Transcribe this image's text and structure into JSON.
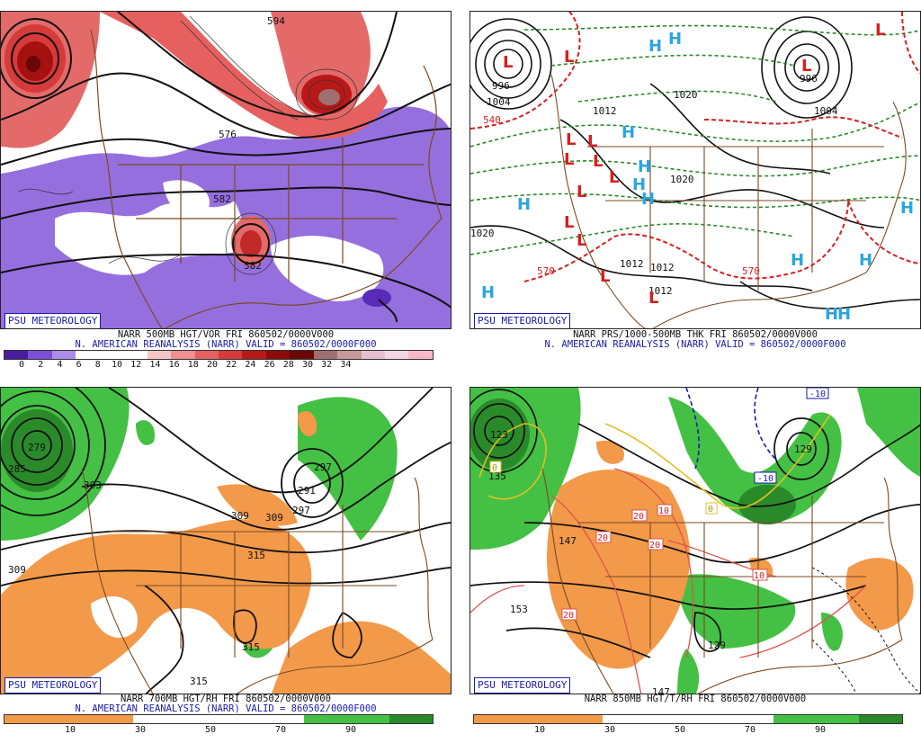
{
  "panels": [
    {
      "id": "vor500",
      "badge": "PSU METEOROLOGY",
      "title": "NARR 500MB HGT/VOR FRI 860502/0000V000",
      "subtitle": "N. AMERICAN REANALYSIS (NARR) VALID = 860502/0000F000",
      "colorbar": {
        "colors": [
          "#4b1d9e",
          "#7d4fd8",
          "#ab8ce8",
          "#ffffff",
          "#ffffff",
          "#ffffff",
          "#f6c6c6",
          "#f09090",
          "#e66060",
          "#d63a3a",
          "#b81818",
          "#8c0a0a",
          "#6a0606",
          "#a07070",
          "#c89898",
          "#e6bfd0",
          "#f2d6e2",
          "#f7b8c8"
        ],
        "labels": [
          "0",
          "2",
          "4",
          "6",
          "8",
          "10",
          "12",
          "14",
          "16",
          "18",
          "20",
          "22",
          "24",
          "26",
          "28",
          "30",
          "32",
          "34"
        ]
      },
      "contour_labels": [
        "594",
        "576",
        "582",
        "582"
      ]
    },
    {
      "id": "prs1000",
      "badge": "PSU METEOROLOGY",
      "title": "NARR PRS/1000-500MB THK FRI 860502/0000V000",
      "subtitle": "N. AMERICAN REANALYSIS (NARR) VALID = 860502/0000F000",
      "contour_labels": [
        "996",
        "1004",
        "540",
        "1012",
        "1020",
        "1020",
        "1012",
        "1012",
        "570",
        "570",
        "996",
        "1004",
        "1020",
        "1012"
      ],
      "highs": "H",
      "lows": "L"
    },
    {
      "id": "rh700",
      "badge": "PSU METEOROLOGY",
      "title": "NARR 700MB HGT/RH FRI 860502/0000V000",
      "subtitle": "N. AMERICAN REANALYSIS (NARR) VALID = 860502/0000F000",
      "colorbar": {
        "colors": [
          "#f29a4a",
          "#f29a4a",
          "#f29a4a",
          "#ffffff",
          "#ffffff",
          "#ffffff",
          "#ffffff",
          "#44c044",
          "#44c044",
          "#2a8a2a"
        ],
        "labels": [
          "10",
          "30",
          "50",
          "70",
          "90"
        ]
      },
      "contour_labels": [
        "279",
        "285",
        "297",
        "303",
        "309",
        "309",
        "309",
        "315",
        "291",
        "297",
        "315",
        "315"
      ]
    },
    {
      "id": "t850",
      "badge": "PSU METEOROLOGY",
      "title": "NARR 850MB HGT/T/RH FRI 860502/0000V000",
      "colorbar": {
        "colors": [
          "#f29a4a",
          "#f29a4a",
          "#f29a4a",
          "#ffffff",
          "#ffffff",
          "#ffffff",
          "#ffffff",
          "#44c044",
          "#44c044",
          "#2a8a2a"
        ],
        "labels": [
          "10",
          "30",
          "50",
          "70",
          "90"
        ]
      },
      "contour_labels": [
        "123",
        "135",
        "147",
        "153",
        "129",
        "129",
        "147",
        "-10",
        "-10",
        "0",
        "20",
        "20",
        "20",
        "20",
        "10",
        "10",
        "0"
      ]
    }
  ]
}
